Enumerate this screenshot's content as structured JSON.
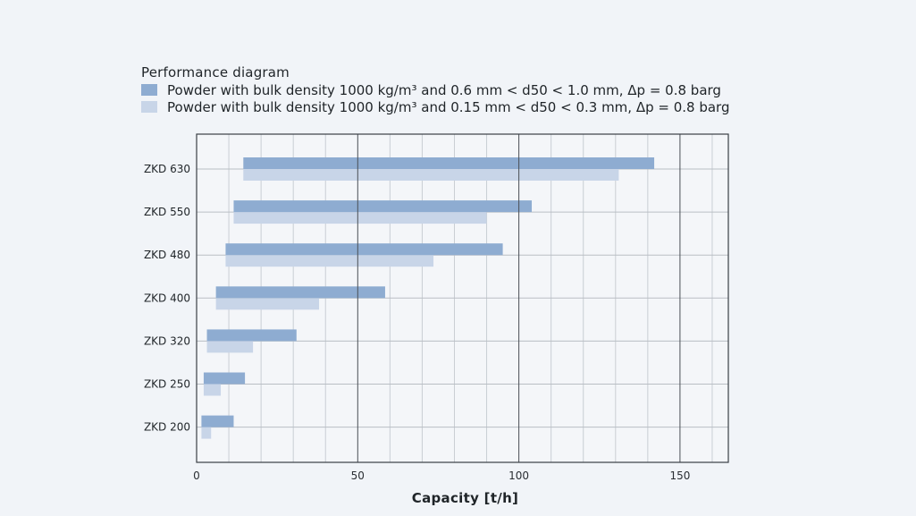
{
  "chart_data": {
    "type": "bar",
    "orientation": "horizontal",
    "title": "Performance diagram",
    "xlabel": "Capacity [t/h]",
    "ylabel": "",
    "xlim": [
      0,
      165
    ],
    "x_ticks": [
      0,
      50,
      100,
      150
    ],
    "minor_grid_step": 10,
    "grid": true,
    "legend_placement": "top-left",
    "categories": [
      "ZKD 630",
      "ZKD 550",
      "ZKD 480",
      "ZKD 400",
      "ZKD 320",
      "ZKD 250",
      "ZKD 200"
    ],
    "series": [
      {
        "name": "Powder with bulk density 1000 kg/m³ and 0.6 mm < d50 < 1.0 mm, Δp = 0.8 barg",
        "color": "#8eacd1",
        "ranges": [
          [
            14.5,
            142
          ],
          [
            11.5,
            104
          ],
          [
            9,
            95
          ],
          [
            6,
            58.5
          ],
          [
            3.2,
            31
          ],
          [
            2.2,
            15
          ],
          [
            1.5,
            11.5
          ]
        ]
      },
      {
        "name": "Powder with bulk density 1000 kg/m³ and 0.15 mm < d50 < 0.3 mm, Δp = 0.8 barg",
        "color": "#c8d5e8",
        "ranges": [
          [
            14.5,
            131
          ],
          [
            11.5,
            90
          ],
          [
            9,
            73.5
          ],
          [
            6,
            38
          ],
          [
            3.2,
            17.5
          ],
          [
            2.2,
            7.5
          ],
          [
            1.5,
            4.5
          ]
        ]
      }
    ]
  }
}
